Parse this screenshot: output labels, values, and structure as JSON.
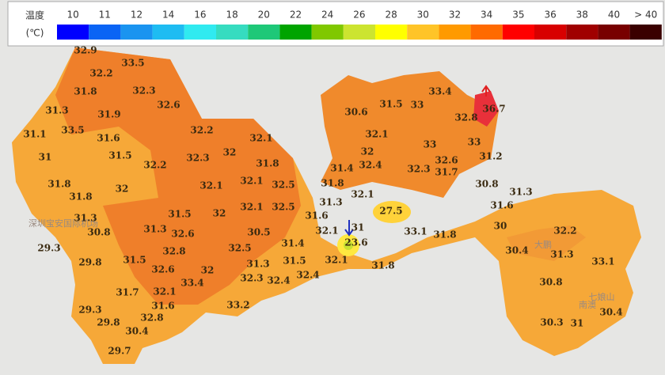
{
  "legend": {
    "title": "温度",
    "unit": "(℃)",
    "items": [
      {
        "label": "10",
        "color": "#0000ff"
      },
      {
        "label": "11",
        "color": "#0a64f5"
      },
      {
        "label": "12",
        "color": "#1a94f0"
      },
      {
        "label": "14",
        "color": "#1ebcf2"
      },
      {
        "label": "16",
        "color": "#30eaf0"
      },
      {
        "label": "18",
        "color": "#36dcc0"
      },
      {
        "label": "20",
        "color": "#1ec878"
      },
      {
        "label": "22",
        "color": "#00a400"
      },
      {
        "label": "24",
        "color": "#80c800"
      },
      {
        "label": "26",
        "color": "#cce430"
      },
      {
        "label": "28",
        "color": "#ffff00"
      },
      {
        "label": "30",
        "color": "#ffc428"
      },
      {
        "label": "32",
        "color": "#ff9a00"
      },
      {
        "label": "34",
        "color": "#ff6a00"
      },
      {
        "label": "35",
        "color": "#ff0000"
      },
      {
        "label": "36",
        "color": "#d80000"
      },
      {
        "label": "38",
        "color": "#a00000"
      },
      {
        "label": "40",
        "color": "#780000"
      },
      {
        "label": "> 40",
        "color": "#3a0000"
      }
    ]
  },
  "map_labels": [
    "深圳宝安国际机场",
    "七娘山",
    "南澳",
    "大鹏"
  ],
  "stations": [
    "32.9",
    "33.5",
    "32.2",
    "31.8",
    "32.3",
    "32.6",
    "31.3",
    "31.9",
    "31.1",
    "33.5",
    "31.6",
    "32.2",
    "32.1",
    "31.5",
    "32.3",
    "32",
    "31",
    "32.2",
    "31.8",
    "31.8",
    "32",
    "32.1",
    "32.1",
    "32.5",
    "31.8",
    "31.3",
    "30.8",
    "31.5",
    "32",
    "32.1",
    "32.5",
    "31.3",
    "32.6",
    "30.5",
    "29.3",
    "32.8",
    "32.5",
    "31.4",
    "29.8",
    "31.5",
    "32.6",
    "32",
    "31.3",
    "31.5",
    "32.3",
    "32.4",
    "32.4",
    "33.4",
    "31.7",
    "32.1",
    "31.6",
    "33.2",
    "29.3",
    "32.8",
    "29.8",
    "30.4",
    "29.7",
    "30.6",
    "31.5",
    "33",
    "33.4",
    "36.7",
    "32.8",
    "32.1",
    "33",
    "33",
    "32",
    "32.4",
    "32.6",
    "31.7",
    "32.3",
    "31.2",
    "31.4",
    "31.8",
    "32.1",
    "30.8",
    "31.3",
    "31.3",
    "31.6",
    "27.5",
    "31.6",
    "31",
    "32.1",
    "33.1",
    "31.8",
    "30",
    "23.6",
    "32.2",
    "30.4",
    "31.3",
    "32.1",
    "31.8",
    "33.1",
    "30.8",
    "30.3",
    "31",
    "30.4"
  ]
}
